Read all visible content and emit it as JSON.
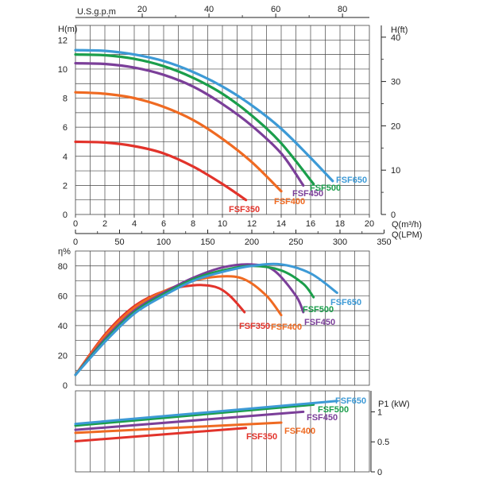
{
  "colors": {
    "FSF350": "#e2332b",
    "FSF400": "#ef6a22",
    "FSF450": "#7b3f99",
    "FSF500": "#1b9e4b",
    "FSF650": "#3d9ad6",
    "axis": "#222222",
    "grid": "#444444"
  },
  "chart_data": [
    {
      "id": "head",
      "type": "line",
      "ylabel_left": "H(m)",
      "ylabel_right": "H(ft)",
      "xlabel_bottom": "Q(m³/h)",
      "xlabel_lpm": "Q(LPM)",
      "xlabel_top": "U.S.g.p.m",
      "xlim": [
        0,
        20
      ],
      "ylim": [
        0,
        13
      ],
      "x_ticks": [
        "0",
        "2",
        "4",
        "6",
        "8",
        "10",
        "12",
        "14",
        "16",
        "18",
        "20"
      ],
      "y_ticks": [
        "0",
        "2",
        "4",
        "6",
        "8",
        "10",
        "12"
      ],
      "ft_ticks": [
        "0",
        "10",
        "20",
        "30",
        "40"
      ],
      "lpm_ticks": [
        "0",
        "50",
        "100",
        "150",
        "200",
        "250",
        "300",
        "350"
      ],
      "gpm_ticks": [
        "20",
        "40",
        "60",
        "80"
      ],
      "series": [
        {
          "name": "FSF350",
          "label": "FSF350",
          "x": [
            0,
            2,
            4,
            6,
            8,
            10,
            11.6
          ],
          "y": [
            5.0,
            4.95,
            4.7,
            4.2,
            3.3,
            2.1,
            1.0
          ]
        },
        {
          "name": "FSF400",
          "label": "FSF400",
          "x": [
            0,
            2,
            4,
            6,
            8,
            10,
            12,
            14
          ],
          "y": [
            8.4,
            8.3,
            8.0,
            7.4,
            6.5,
            5.2,
            3.6,
            1.6
          ]
        },
        {
          "name": "FSF450",
          "label": "FSF450",
          "x": [
            0,
            2,
            4,
            6,
            8,
            10,
            12,
            14,
            15.5
          ],
          "y": [
            10.4,
            10.35,
            10.1,
            9.6,
            8.8,
            7.6,
            6.1,
            4.2,
            2.0
          ]
        },
        {
          "name": "FSF500",
          "label": "FSF500",
          "x": [
            0,
            2,
            4,
            6,
            8,
            10,
            12,
            14,
            16.2
          ],
          "y": [
            11.0,
            10.95,
            10.7,
            10.2,
            9.4,
            8.3,
            6.8,
            4.9,
            2.1
          ]
        },
        {
          "name": "FSF650",
          "label": "FSF650",
          "x": [
            0,
            2,
            4,
            6,
            8,
            10,
            12,
            14,
            16,
            17.5
          ],
          "y": [
            11.3,
            11.25,
            11.0,
            10.55,
            9.8,
            8.8,
            7.5,
            5.9,
            3.9,
            2.3
          ]
        }
      ]
    },
    {
      "id": "efficiency",
      "type": "line",
      "ylabel": "η%",
      "xlim": [
        0,
        20
      ],
      "ylim": [
        0,
        90
      ],
      "y_ticks": [
        "0",
        "20",
        "40",
        "60",
        "80"
      ],
      "series": [
        {
          "name": "FSF350",
          "label": "FSF350",
          "x": [
            0,
            2,
            4,
            6,
            8,
            9.5,
            10.5,
            11.5
          ],
          "y": [
            7,
            34,
            53,
            63,
            67,
            66,
            60,
            49
          ]
        },
        {
          "name": "FSF400",
          "label": "FSF400",
          "x": [
            0,
            2,
            4,
            6,
            8,
            10,
            11.5,
            13,
            14
          ],
          "y": [
            7,
            33,
            52,
            63,
            70,
            73,
            71,
            60,
            47
          ]
        },
        {
          "name": "FSF450",
          "label": "FSF450",
          "x": [
            0,
            2,
            4,
            6,
            8,
            10,
            12,
            13.5,
            15,
            15.5
          ],
          "y": [
            7,
            31,
            50,
            62,
            72,
            79,
            81,
            77,
            60,
            49
          ]
        },
        {
          "name": "FSF500",
          "label": "FSF500",
          "x": [
            0,
            2,
            4,
            6,
            8,
            10,
            12,
            14,
            15.5,
            16.2
          ],
          "y": [
            7,
            30,
            49,
            61,
            71,
            77,
            80,
            77,
            68,
            59
          ]
        },
        {
          "name": "FSF650",
          "label": "FSF650",
          "x": [
            0,
            2,
            4,
            6,
            8,
            10,
            12,
            14,
            16,
            17.8
          ],
          "y": [
            7,
            29,
            48,
            60,
            70,
            76,
            80,
            81,
            75,
            62
          ]
        }
      ]
    },
    {
      "id": "power",
      "type": "line",
      "ylabel_right": "P1 (kW)",
      "xlim": [
        0,
        20
      ],
      "ylim": [
        0,
        1.35
      ],
      "y_ticks": [
        "0",
        "0.5",
        "1"
      ],
      "series": [
        {
          "name": "FSF350",
          "label": "FSF350",
          "x": [
            0,
            11.6
          ],
          "y": [
            0.51,
            0.73
          ]
        },
        {
          "name": "FSF400",
          "label": "FSF400",
          "x": [
            0,
            14
          ],
          "y": [
            0.65,
            0.82
          ]
        },
        {
          "name": "FSF450",
          "label": "FSF450",
          "x": [
            0,
            15.5
          ],
          "y": [
            0.7,
            1.0
          ]
        },
        {
          "name": "FSF500",
          "label": "FSF500",
          "x": [
            0,
            16.2
          ],
          "y": [
            0.77,
            1.12
          ]
        },
        {
          "name": "FSF650",
          "label": "FSF650",
          "x": [
            0,
            17.8
          ],
          "y": [
            0.8,
            1.18
          ]
        }
      ]
    }
  ]
}
